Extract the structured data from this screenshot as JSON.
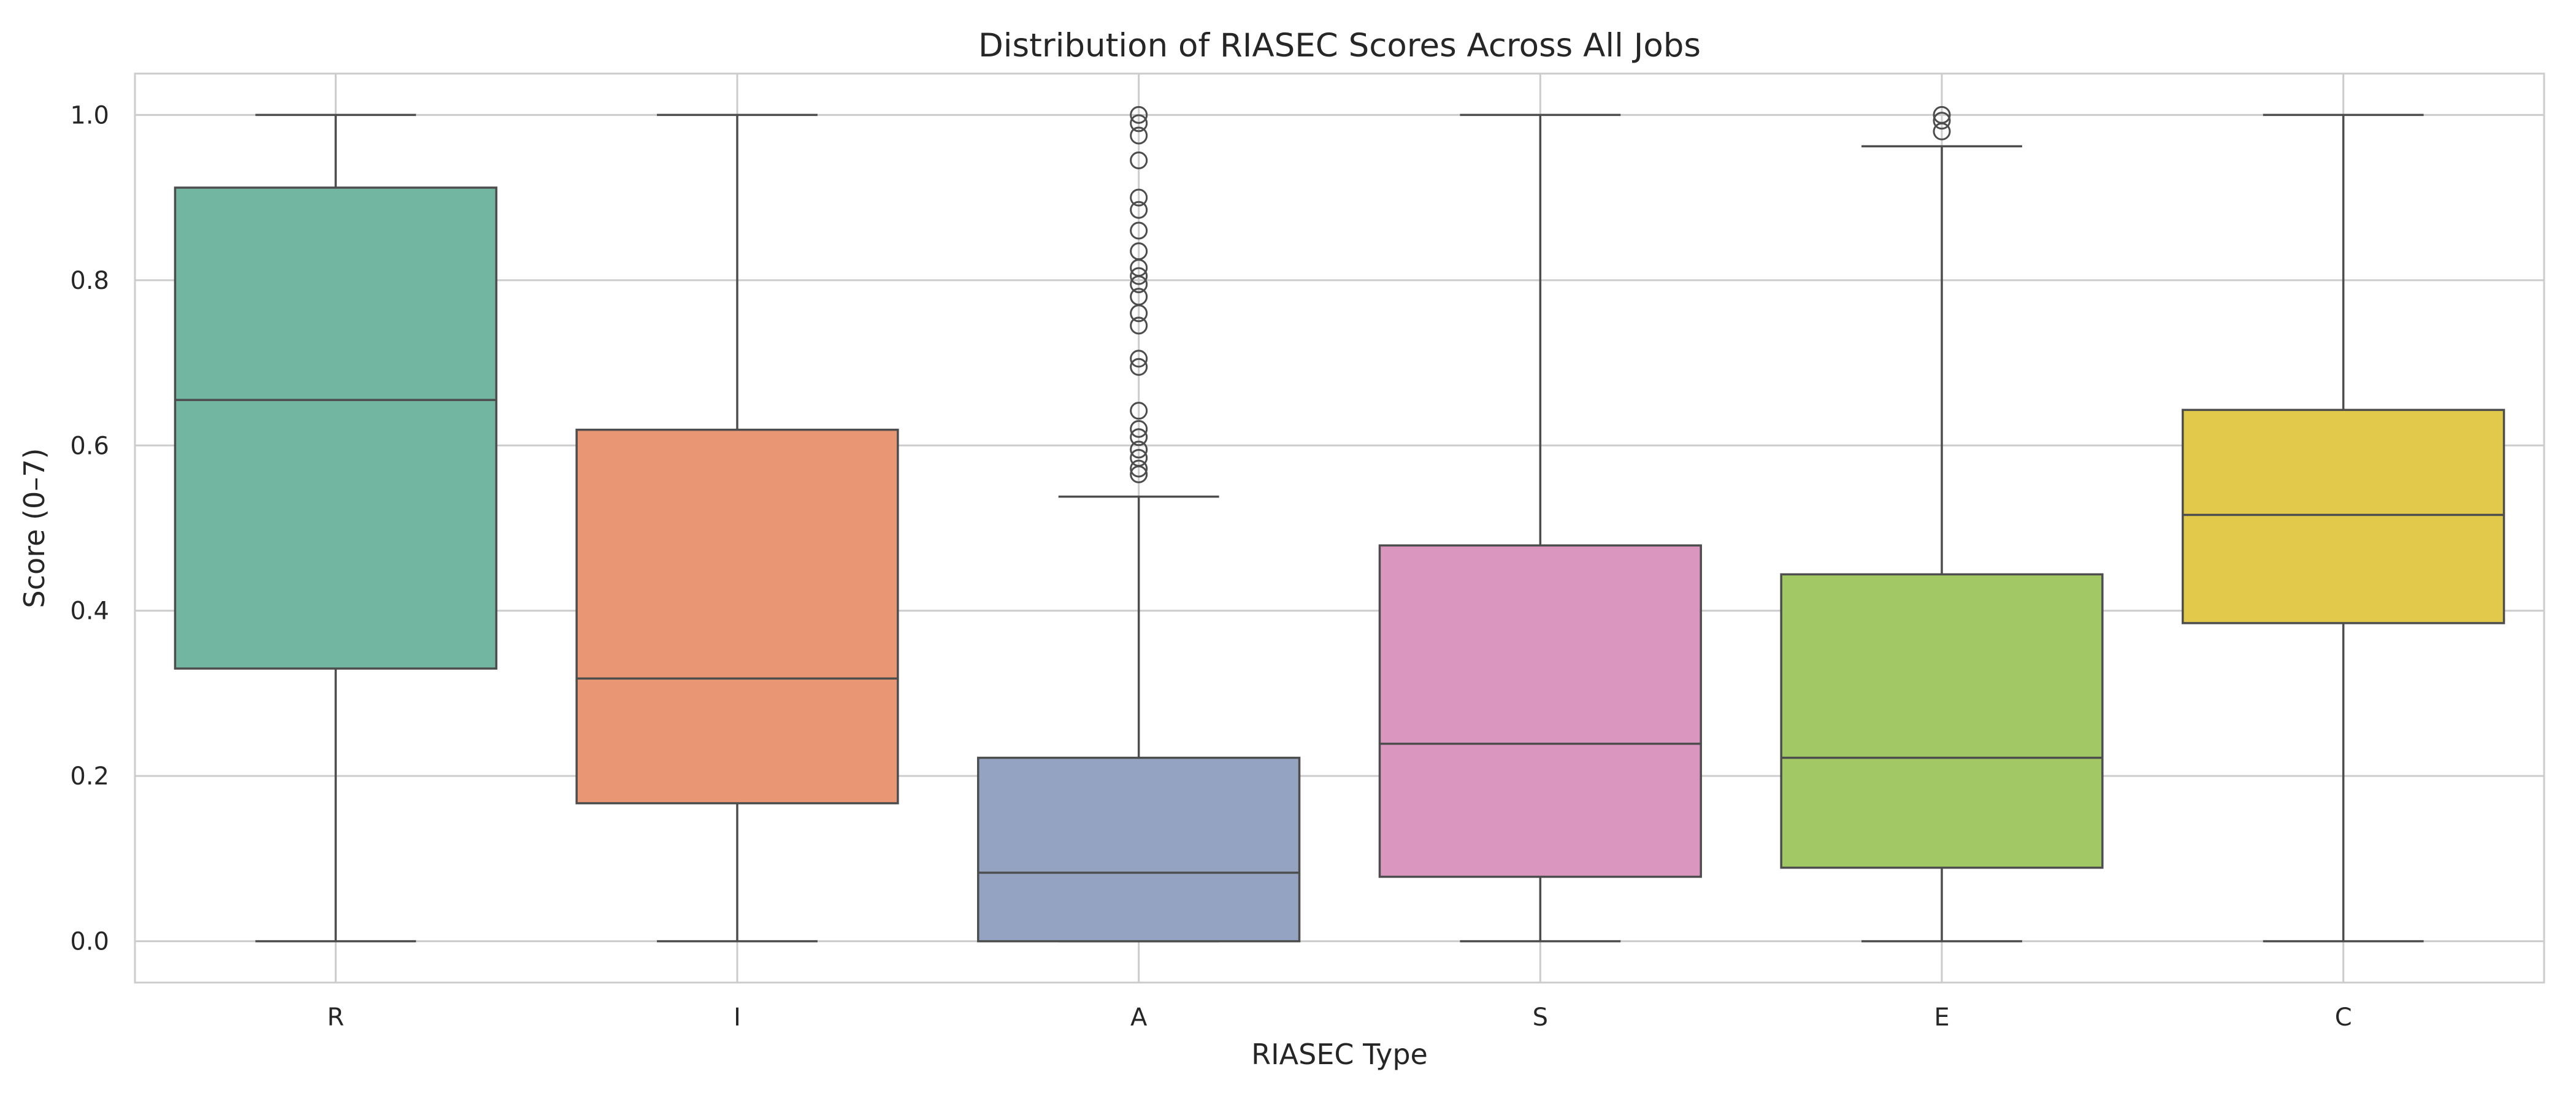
{
  "chart_data": {
    "type": "box",
    "title": "Distribution of RIASEC Scores Across All Jobs",
    "xlabel": "RIASEC Type",
    "ylabel": "Score (0–7)",
    "ylim": [
      -0.05,
      1.05
    ],
    "yticks": [
      0.0,
      0.2,
      0.4,
      0.6,
      0.8,
      1.0
    ],
    "ytick_labels": [
      "0.0",
      "0.2",
      "0.4",
      "0.6",
      "0.8",
      "1.0"
    ],
    "grid": true,
    "legend": "none",
    "categories": [
      "R",
      "I",
      "A",
      "S",
      "E",
      "C"
    ],
    "boxes": [
      {
        "category": "R",
        "whisker_low": 0.0,
        "q1": 0.33,
        "median": 0.655,
        "q3": 0.912,
        "whisker_high": 1.0,
        "outliers": [],
        "color": "#72b6a1"
      },
      {
        "category": "I",
        "whisker_low": 0.0,
        "q1": 0.167,
        "median": 0.318,
        "q3": 0.619,
        "whisker_high": 1.0,
        "outliers": [],
        "color": "#e99675"
      },
      {
        "category": "A",
        "whisker_low": 0.0,
        "q1": 0.0,
        "median": 0.083,
        "q3": 0.222,
        "whisker_high": 0.538,
        "outliers": [
          0.565,
          0.572,
          0.585,
          0.595,
          0.61,
          0.62,
          0.642,
          0.695,
          0.705,
          0.745,
          0.76,
          0.78,
          0.795,
          0.805,
          0.815,
          0.835,
          0.86,
          0.885,
          0.9,
          0.945,
          0.975,
          0.99,
          1.0
        ],
        "color": "#95a3c3"
      },
      {
        "category": "S",
        "whisker_low": 0.0,
        "q1": 0.078,
        "median": 0.239,
        "q3": 0.479,
        "whisker_high": 1.0,
        "outliers": [],
        "color": "#db96c0"
      },
      {
        "category": "E",
        "whisker_low": 0.0,
        "q1": 0.089,
        "median": 0.222,
        "q3": 0.444,
        "whisker_high": 0.962,
        "outliers": [
          0.98,
          0.993,
          1.0
        ],
        "color": "#a2c865"
      },
      {
        "category": "C",
        "whisker_low": 0.0,
        "q1": 0.385,
        "median": 0.516,
        "q3": 0.643,
        "whisker_high": 1.0,
        "outliers": [],
        "color": "#e2c94b"
      }
    ],
    "colors": {
      "grid": "#cccccc",
      "frame": "#cccccc",
      "line": "#4d4d4d",
      "text": "#262626"
    }
  }
}
